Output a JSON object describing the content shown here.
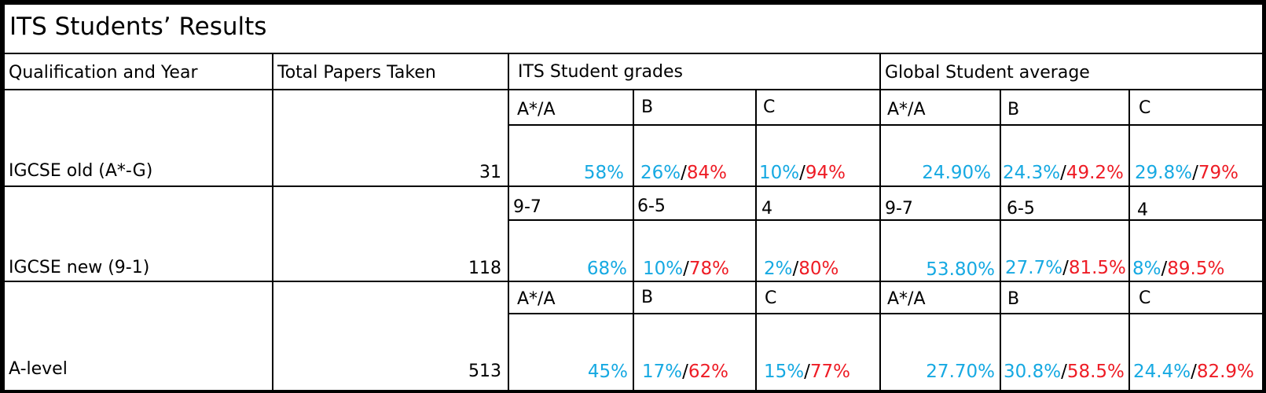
{
  "title": "ITS Students’ Results",
  "headers": {
    "qualification": "Qualification and Year",
    "total": "Total Papers Taken",
    "its": "ITS Student grades",
    "global": "Global Student average"
  },
  "colors": {
    "its_pct": "#16a9e2",
    "cumulative_pct": "#ee1c25"
  },
  "rows": [
    {
      "label": "IGCSE old (A*-G)",
      "total": "31",
      "grades": [
        "A*/A",
        "B",
        "C"
      ],
      "its": {
        "top": "58%",
        "mid": [
          "26%",
          "/",
          "84%"
        ],
        "low": [
          "10%",
          "/",
          "94%"
        ]
      },
      "global": {
        "top": "24.90%",
        "mid": [
          "24.3%",
          "/",
          "49.2%"
        ],
        "low": [
          "29.8%",
          "/",
          "79%"
        ]
      }
    },
    {
      "label": "IGCSE new (9-1)",
      "total": "118",
      "grades": [
        "9-7",
        "6-5",
        "4"
      ],
      "its": {
        "top": "68%",
        "mid": [
          "10%",
          "/",
          "78%"
        ],
        "low": [
          "2%",
          "/",
          "80%"
        ]
      },
      "global": {
        "top": "53.80%",
        "mid": [
          "27.7%",
          "/",
          "81.5%"
        ],
        "low": [
          "8%",
          "/",
          "89.5%"
        ]
      }
    },
    {
      "label": "A-level",
      "total": "513",
      "grades": [
        "A*/A",
        "B",
        "C"
      ],
      "its": {
        "top": "45%",
        "mid": [
          "17%",
          "/",
          "62%"
        ],
        "low": [
          "15%",
          "/",
          "77%"
        ]
      },
      "global": {
        "top": "27.70%",
        "mid": [
          "30.8%",
          "/",
          "58.5%"
        ],
        "low": [
          "24.4%",
          "/",
          "82.9%"
        ]
      }
    }
  ]
}
